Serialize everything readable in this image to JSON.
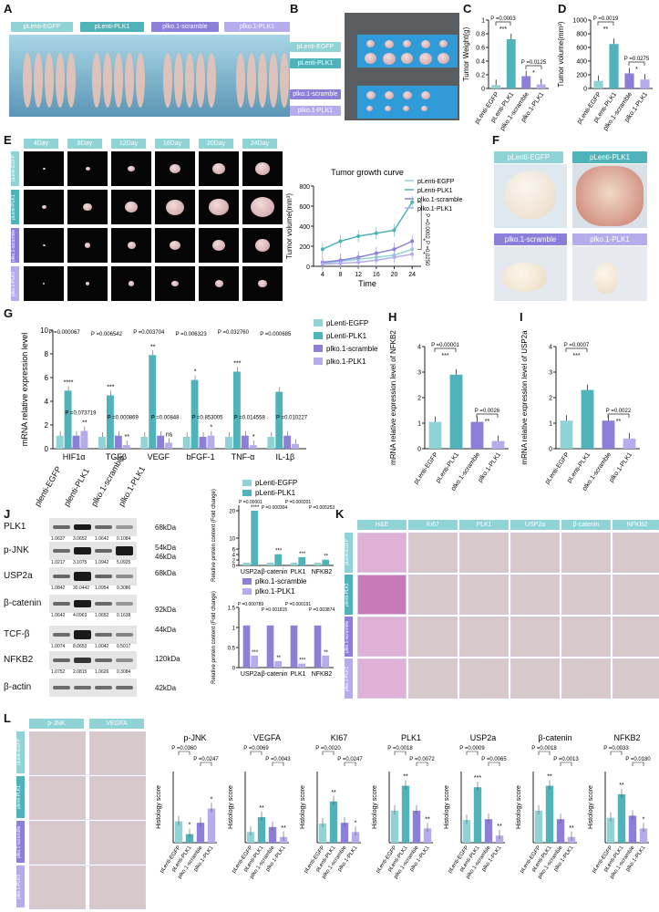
{
  "labels": {
    "A": "A",
    "B": "B",
    "C": "C",
    "D": "D",
    "E": "E",
    "F": "F",
    "G": "G",
    "H": "H",
    "I": "I",
    "J": "J",
    "K": "K",
    "L": "L"
  },
  "groups": [
    "pLenti-EGFP",
    "pLenti-PLK1",
    "plko.1-scramble",
    "plko.1-PLK1"
  ],
  "colors": {
    "egfp": "#8fd3d6",
    "plk1": "#4fb3b9",
    "scramble": "#8b7fd9",
    "ko": "#b5acec"
  },
  "panelA": {
    "groups": [
      "pLenti-EGFP",
      "pLenti-PLK1",
      "plko.1-scramble",
      "plko.1-PLK1"
    ]
  },
  "panelB": {
    "groups": [
      "pLenti-EGFP",
      "pLenti-PLK1",
      "plko.1-scramble",
      "plko.1-PLK1"
    ]
  },
  "panelE": {
    "days": [
      "4Day",
      "8Day",
      "12Day",
      "16Day",
      "20Day",
      "24Day"
    ],
    "rows": [
      "pLenti-EGFP",
      "pLenti-PLK1",
      "plko.1-scramble",
      "plko.1-PLK1"
    ]
  },
  "panelF": {
    "groups": [
      "pLenti-EGFP",
      "pLenti-PLK1",
      "plko.1-scramble",
      "plko.1-PLK1"
    ]
  },
  "panelJ": {
    "blot_labels": [
      "PLK1",
      "p-JNK",
      "USP2a",
      "β-catenin",
      "TCF-β",
      "NFKB2",
      "β-actin"
    ],
    "kda": [
      "68kDa",
      "54kDa",
      "46kDa",
      "68kDa",
      "92kDa",
      "44kDa",
      "120kDa",
      "42kDa"
    ],
    "lanes": [
      "plenti-EGFP",
      "plenti-PLK1",
      "plko.1-scramble",
      "plko.1-PLK1"
    ],
    "quant": [
      [
        "1.0637",
        "3.0652",
        "1.0642",
        "0.1084"
      ],
      [
        "1.0217",
        "3.1075",
        "1.0942",
        "5.0925"
      ],
      [
        "1.0842",
        "30.0442",
        "1.0954",
        "0.3086"
      ],
      [
        "1.0642",
        "4.0963",
        "1.0652",
        "0.1638"
      ],
      [
        "1.0074",
        "8.0653",
        "1.0042",
        "0.5017"
      ],
      [
        "1.0752",
        "2.0815",
        "1.0626",
        "0.3084"
      ]
    ]
  },
  "panelK": {
    "cols": [
      "H&E",
      "Ki67",
      "PLK1",
      "USP2a",
      "β-catenin",
      "NFKB2"
    ],
    "rows": [
      "pLenti-EGFP",
      "plenti-PLK1",
      "plko.1-scramble",
      "plko.1-PLK1"
    ]
  },
  "panelL": {
    "cols": [
      "p-JNK",
      "VEGFA"
    ],
    "rows": [
      "pLenti-EGFP",
      "plenti-PLK1",
      "plko.1-scramble",
      "plko.1-PLK1"
    ]
  },
  "chart_data": [
    {
      "id": "C",
      "type": "bar",
      "title": "",
      "ylabel": "Tumor Weight(g)",
      "categories": [
        "pLenti-EGFP",
        "pLenti-PLK1",
        "plko.1-scramble",
        "plko.1-PLK1"
      ],
      "values": [
        0.05,
        0.72,
        0.18,
        0.06
      ],
      "ylim": [
        0,
        1.0
      ],
      "yticks": [
        0.0,
        0.2,
        0.4,
        0.6,
        0.8,
        1.0
      ],
      "annotations": [
        "P =0.0003",
        "P =0.0125",
        "***",
        "*"
      ]
    },
    {
      "id": "D",
      "type": "bar",
      "title": "",
      "ylabel": "Tumor volume(mm³)",
      "categories": [
        "pLenti-EGFP",
        "pLenti-PLK1",
        "plko.1-scramble",
        "plko.1-PLK1"
      ],
      "values": [
        110,
        650,
        220,
        130
      ],
      "ylim": [
        0,
        1000
      ],
      "yticks": [
        0,
        200,
        400,
        600,
        800,
        1000
      ],
      "annotations": [
        "P =0.0019",
        "P =0.0275",
        "**",
        "*"
      ]
    },
    {
      "id": "E",
      "type": "line",
      "title": "Tumor growth curve",
      "xlabel": "Time",
      "ylabel": "Tumor volume(mm³)",
      "x": [
        4,
        8,
        12,
        16,
        20,
        24
      ],
      "ylim": [
        0,
        800
      ],
      "yticks": [
        0,
        200,
        400,
        600,
        800
      ],
      "series": [
        {
          "name": "pLenti-EGFP",
          "values": [
            30,
            50,
            70,
            90,
            110,
            170
          ]
        },
        {
          "name": "pLenti-PLK1",
          "values": [
            170,
            250,
            300,
            330,
            360,
            640
          ]
        },
        {
          "name": "plko.1-scramble",
          "values": [
            40,
            60,
            90,
            130,
            170,
            250
          ]
        },
        {
          "name": "plko.1-PLK1",
          "values": [
            20,
            30,
            40,
            60,
            90,
            120
          ]
        }
      ],
      "annotations": [
        "P =0.0002",
        "P =0.0250",
        "*",
        "*"
      ]
    },
    {
      "id": "G",
      "type": "bar",
      "ylabel": "mRNA relative expression level",
      "categories": [
        "HIF1α",
        "TGFβ",
        "VEGF",
        "bFGF-1",
        "TNF-α",
        "IL-1β"
      ],
      "ylim": [
        0,
        10
      ],
      "yticks": [
        0,
        2,
        4,
        6,
        8,
        10
      ],
      "series": [
        {
          "name": "pLenti-EGFP",
          "values": [
            1.1,
            1.0,
            1.0,
            1.0,
            1.0,
            1.0
          ]
        },
        {
          "name": "pLenti-PLK1",
          "values": [
            4.9,
            4.5,
            7.9,
            5.8,
            6.5,
            4.8
          ]
        },
        {
          "name": "plko.1-scramble",
          "values": [
            1.1,
            1.1,
            1.1,
            1.0,
            1.1,
            1.1
          ]
        },
        {
          "name": "plko.1-PLK1",
          "values": [
            1.5,
            0.3,
            0.5,
            1.1,
            0.3,
            0.4
          ]
        }
      ],
      "annotations": [
        "P =0.000067",
        "P =0.073719",
        "P =0.006542",
        "P =0.000869",
        "P =0.003704",
        "P =0.00848",
        "P =0.006323",
        "P =0.853005",
        "P =0.032760",
        "P =0.014558",
        "P =0.000685",
        "P =0.010227",
        "****",
        "**",
        "***",
        "**",
        "**",
        "ns",
        "*",
        "*",
        "***",
        "*"
      ]
    },
    {
      "id": "H",
      "type": "bar",
      "ylabel": "mRNA relative expression level of NFKB2",
      "categories": [
        "pLenti-EGFP",
        "pLenti-PLK1",
        "plko.1-scramble",
        "plko.1-PLK1"
      ],
      "values": [
        1.05,
        2.9,
        1.05,
        0.3
      ],
      "ylim": [
        0,
        4
      ],
      "yticks": [
        0,
        1,
        2,
        3,
        4
      ],
      "annotations": [
        "P =0.00001",
        "P =0.0026",
        "***",
        "**"
      ]
    },
    {
      "id": "I",
      "type": "bar",
      "ylabel": "mRNA relative expression level of USP2a",
      "categories": [
        "pLenti-EGFP",
        "pLenti-PLK1",
        "plko.1-scramble",
        "plko.1-PLK1"
      ],
      "values": [
        1.1,
        2.3,
        1.1,
        0.4
      ],
      "ylim": [
        0,
        4
      ],
      "yticks": [
        0,
        1,
        2,
        3,
        4
      ],
      "annotations": [
        "P =0.0007",
        "P =0.0022",
        "***",
        "**"
      ]
    },
    {
      "id": "J1",
      "type": "bar",
      "ylabel": "Relative protein content (Fold change)",
      "categories": [
        "USP2a",
        "β-catenin",
        "PLK1",
        "NFKB2"
      ],
      "yticks": [
        0,
        2,
        4,
        6,
        10,
        20,
        30
      ],
      "series": [
        {
          "name": "pLenti-EGFP",
          "values": [
            1,
            1,
            1,
            1
          ]
        },
        {
          "name": "pLenti-PLK1",
          "values": [
            20,
            4.1,
            3.0,
            2.1
          ]
        }
      ],
      "annotations": [
        "P =0.00001",
        "P =0.000304",
        "P =0.000201",
        "P =0.005253",
        "****",
        "***",
        "***",
        "**"
      ]
    },
    {
      "id": "J2",
      "type": "bar",
      "ylabel": "Relative protein content (Fold change)",
      "categories": [
        "USP2a",
        "β-catenin",
        "PLK1",
        "NFKB2"
      ],
      "ylim": [
        0,
        1.5
      ],
      "yticks": [
        0.0,
        0.5,
        1.0,
        1.5
      ],
      "series": [
        {
          "name": "plko.1-scramble",
          "values": [
            1.05,
            1.05,
            1.05,
            1.05
          ]
        },
        {
          "name": "plko.1-PLK1",
          "values": [
            0.3,
            0.16,
            0.1,
            0.3
          ]
        }
      ],
      "annotations": [
        "P =0.000789",
        "P =0.001815",
        "P =0.000191",
        "P =0.003874",
        "***",
        "**",
        "***",
        "**"
      ]
    },
    {
      "id": "L",
      "type": "bar",
      "ylabel": "Histology score",
      "categories": [
        "pLenti-EGFP",
        "pLenti-PLK1",
        "plko.1-scramble",
        "plko.1-PLK1"
      ],
      "ylim": [
        0,
        100
      ],
      "subcharts": [
        {
          "title": "p-JNK",
          "values": [
            30,
            12,
            28,
            48
          ],
          "annotations": [
            "P =0.0360",
            "P =0.0247",
            "*",
            "*"
          ]
        },
        {
          "title": "VEGFA",
          "values": [
            15,
            36,
            22,
            8
          ],
          "annotations": [
            "P =0.0069",
            "P =0.0043",
            "**",
            "**"
          ]
        },
        {
          "title": "KI67",
          "values": [
            27,
            58,
            28,
            15
          ],
          "annotations": [
            "P =0.0020",
            "P =0.0247",
            "**",
            "*"
          ]
        },
        {
          "title": "PLK1",
          "values": [
            45,
            80,
            45,
            20
          ],
          "annotations": [
            "P =0.0018",
            "P =0.0072",
            "**",
            "**"
          ]
        },
        {
          "title": "USP2a",
          "values": [
            32,
            78,
            33,
            10
          ],
          "annotations": [
            "P =0.0009",
            "P =0.0065",
            "***",
            "**"
          ]
        },
        {
          "title": "β-catenin",
          "values": [
            45,
            80,
            33,
            8
          ],
          "annotations": [
            "P =0.0018",
            "P =0.0013",
            "**",
            "**"
          ]
        },
        {
          "title": "NFKB2",
          "values": [
            35,
            68,
            38,
            20
          ],
          "annotations": [
            "P =0.0033",
            "P =0.0180",
            "**",
            "*"
          ]
        }
      ]
    }
  ]
}
